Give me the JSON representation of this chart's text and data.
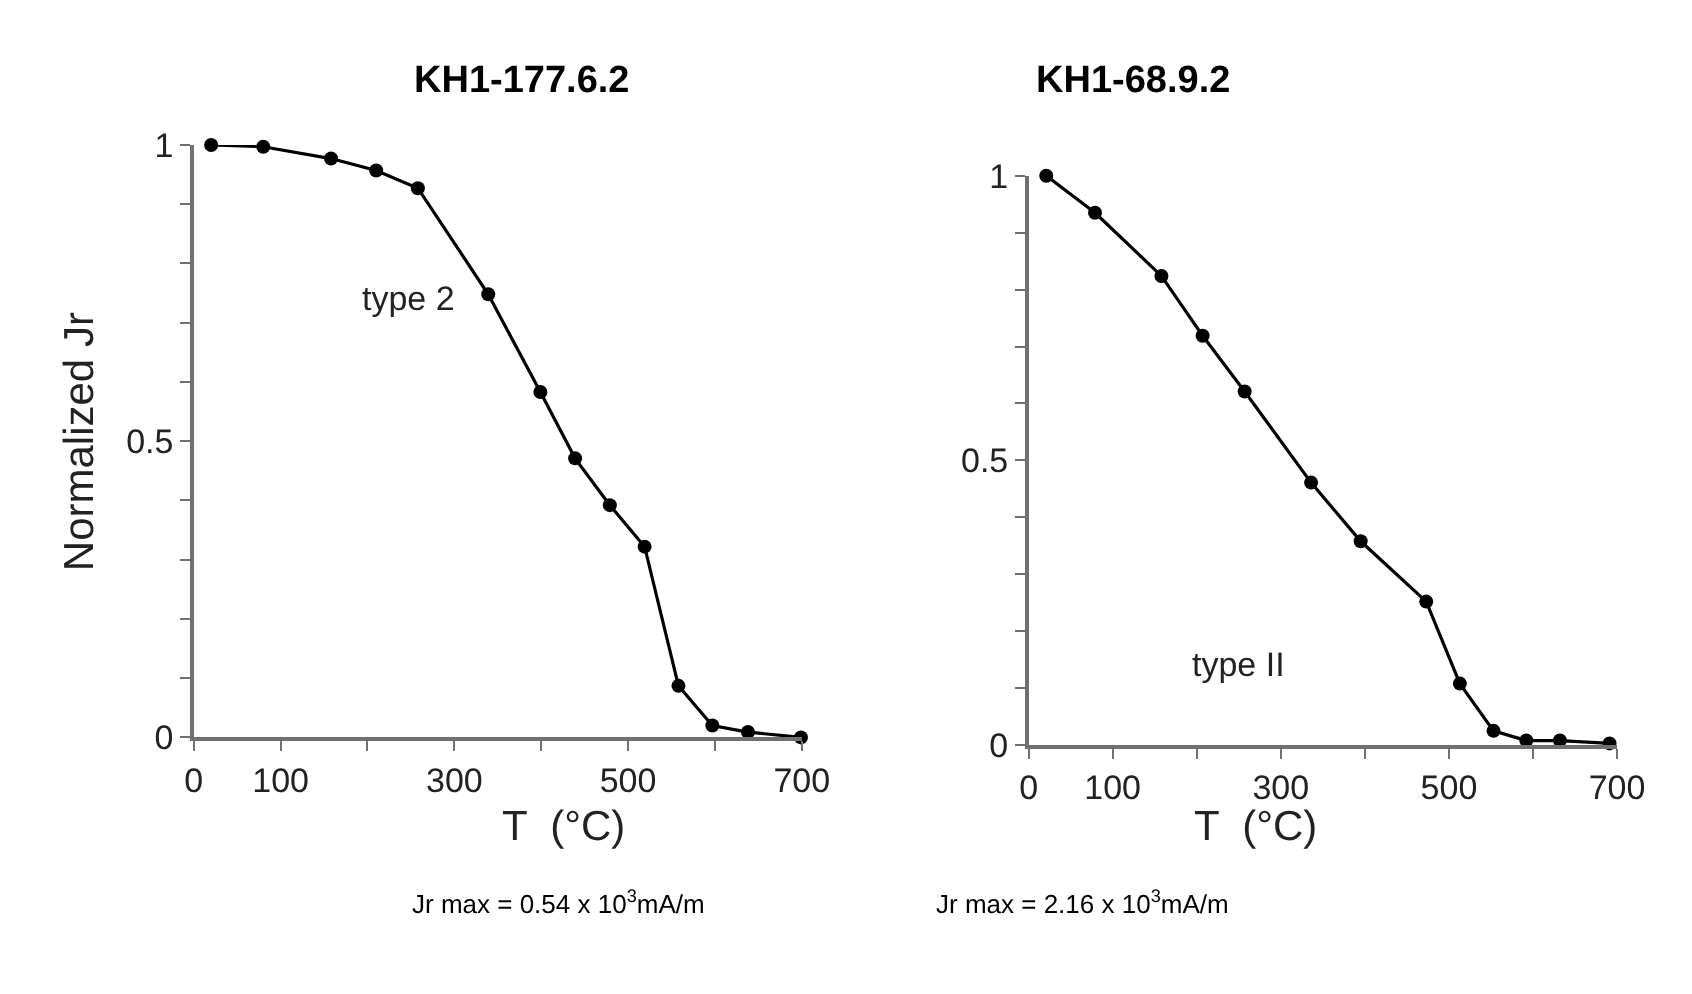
{
  "chart_data": [
    {
      "type": "line",
      "title": "KH1-177.6.2",
      "xlabel": "T  (°C)",
      "ylabel": "Normalized Jr",
      "x": [
        20,
        80,
        158,
        210,
        258,
        339,
        399,
        439,
        479,
        519,
        558,
        597,
        638,
        699
      ],
      "series": [
        {
          "color": "#000000",
          "values": [
            1.0,
            0.997,
            0.977,
            0.957,
            0.927,
            0.748,
            0.583,
            0.471,
            0.392,
            0.322,
            0.087,
            0.02,
            0.009,
            0.0
          ]
        }
      ],
      "xlim": [
        0,
        700
      ],
      "ylim": [
        0,
        1
      ],
      "xticks": [
        0,
        100,
        {
          "value": 200,
          "label": null
        },
        300,
        {
          "value": 400,
          "label": null
        },
        500,
        {
          "value": 600,
          "label": null
        },
        700
      ],
      "yticks": [
        0,
        {
          "value": 0.1,
          "label": null
        },
        {
          "value": 0.2,
          "label": null
        },
        {
          "value": 0.3,
          "label": null
        },
        {
          "value": 0.4,
          "label": null
        },
        0.5,
        {
          "value": 0.6,
          "label": null
        },
        {
          "value": 0.7,
          "label": null
        },
        {
          "value": 0.8,
          "label": null
        },
        {
          "value": 0.9,
          "label": null
        },
        1
      ],
      "annotations": [
        "type 2",
        "Jr max = 0.54 x 10$^{3}$mA/m"
      ],
      "marker": "circle",
      "line_style": "solid"
    },
    {
      "type": "line",
      "title": "KH1-68.9.2",
      "xlabel": "T  (°C)",
      "x": [
        21,
        79,
        158,
        207,
        257,
        336,
        395,
        473,
        513,
        553,
        592,
        632,
        691
      ],
      "series": [
        {
          "color": "#000000",
          "values": [
            1.0,
            0.935,
            0.824,
            0.719,
            0.621,
            0.461,
            0.358,
            0.252,
            0.108,
            0.025,
            0.008,
            0.008,
            0.003
          ]
        }
      ],
      "xlim": [
        0,
        700
      ],
      "ylim": [
        0,
        1
      ],
      "xticks": [
        0,
        100,
        {
          "value": 200,
          "label": null
        },
        300,
        {
          "value": 400,
          "label": null
        },
        500,
        {
          "value": 600,
          "label": null
        },
        700
      ],
      "yticks": [
        0,
        {
          "value": 0.1,
          "label": null
        },
        {
          "value": 0.2,
          "label": null
        },
        {
          "value": 0.3,
          "label": null
        },
        {
          "value": 0.4,
          "label": null
        },
        0.5,
        {
          "value": 0.6,
          "label": null
        },
        {
          "value": 0.7,
          "label": null
        },
        {
          "value": 0.8,
          "label": null
        },
        {
          "value": 0.9,
          "label": null
        },
        1
      ],
      "annotations": [
        "type II",
        "Jr max = 2.16 x 10$^{3}$mA/m"
      ],
      "marker": "circle",
      "line_style": "solid"
    }
  ]
}
